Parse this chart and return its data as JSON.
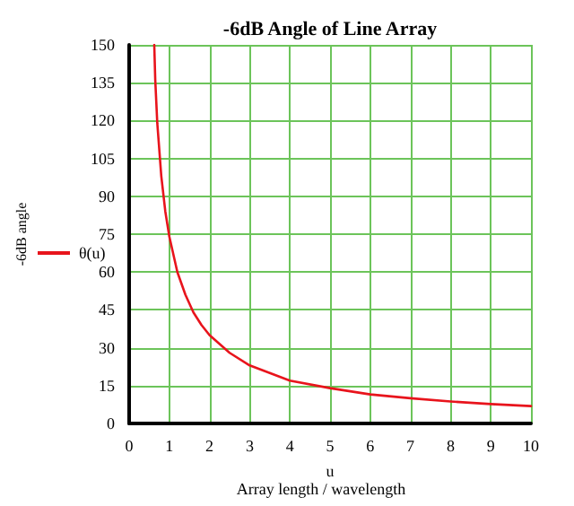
{
  "chart_data": {
    "type": "line",
    "title": "-6dB Angle of Line Array",
    "xlabel": "u",
    "ylabel": "-6dB angle",
    "annotations": [
      "Array length / wavelength"
    ],
    "series": [
      {
        "name": "θ(u)",
        "color": "#e8141c",
        "x": [
          0.625,
          0.65,
          0.7,
          0.8,
          0.9,
          1,
          1.2,
          1.4,
          1.6,
          1.8,
          2,
          2.5,
          3,
          3.5,
          4,
          5,
          6,
          7,
          8,
          9,
          10
        ],
        "values": [
          150,
          136,
          119,
          98,
          84,
          74,
          60,
          51,
          44,
          39,
          35,
          28,
          23,
          20,
          17,
          14,
          11.5,
          10,
          8.7,
          7.7,
          6.9
        ]
      }
    ],
    "xlim": [
      0,
      10
    ],
    "xticks": [
      0,
      1,
      2,
      3,
      4,
      5,
      6,
      7,
      8,
      9,
      10
    ],
    "ylim": [
      0,
      150
    ],
    "yticks": [
      0,
      15,
      30,
      45,
      60,
      75,
      90,
      105,
      120,
      135,
      150
    ],
    "grid": true,
    "legend": "left",
    "marker": "none",
    "line_style": "solid"
  }
}
